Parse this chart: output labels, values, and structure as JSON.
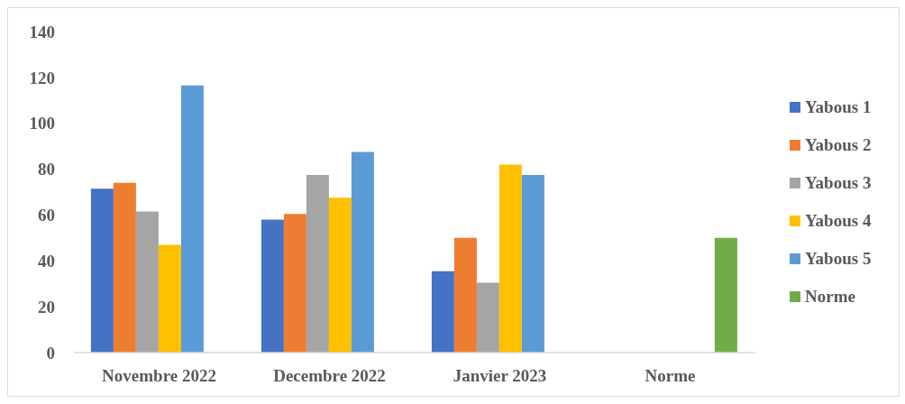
{
  "chart_data": {
    "type": "bar",
    "categories": [
      "Novembre 2022",
      "Decembre 2022",
      "Janvier 2023",
      "Norme"
    ],
    "series": [
      {
        "name": "Yabous 1",
        "color": "#4472c4",
        "values": [
          71.5,
          58,
          35.5,
          null
        ]
      },
      {
        "name": "Yabous 2",
        "color": "#ed7d31",
        "values": [
          74,
          60.5,
          50,
          null
        ]
      },
      {
        "name": "Yabous 3",
        "color": "#a5a5a5",
        "values": [
          61.5,
          77.5,
          30.5,
          null
        ]
      },
      {
        "name": "Yabous 4",
        "color": "#ffc000",
        "values": [
          47,
          67.5,
          82,
          null
        ]
      },
      {
        "name": "Yabous 5",
        "color": "#5b9bd5",
        "values": [
          116.5,
          87.5,
          77.5,
          null
        ]
      },
      {
        "name": "Norme",
        "color": "#70ad47",
        "values": [
          null,
          null,
          null,
          50
        ]
      }
    ],
    "ylim": [
      0,
      140
    ],
    "yticks": [
      0,
      20,
      40,
      60,
      80,
      100,
      120,
      140
    ],
    "legend": "right"
  }
}
